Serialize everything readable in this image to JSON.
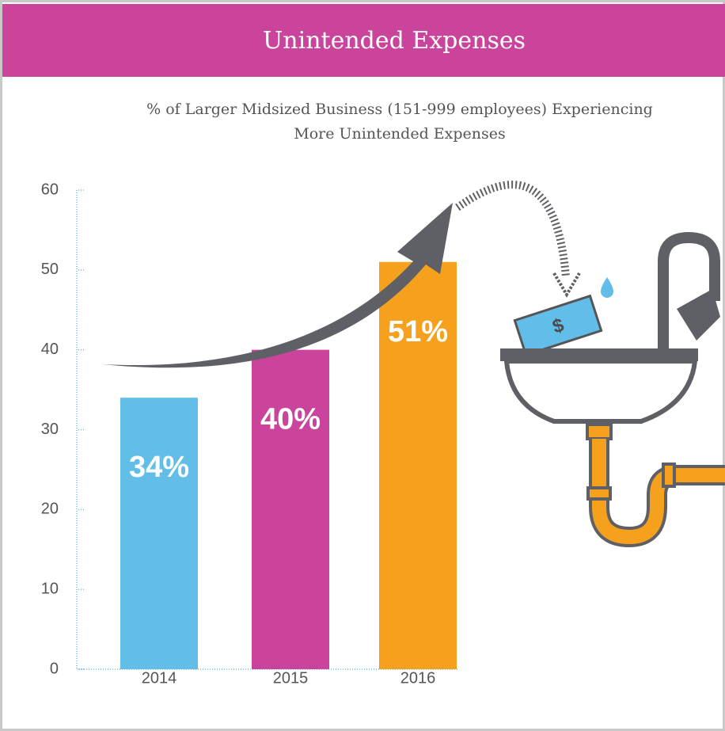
{
  "chart_data": {
    "type": "bar",
    "title": "Unintended Expenses",
    "subtitle": [
      "% of Larger Midsized Business (151-999 employees) Experiencing",
      "More Unintended Expenses"
    ],
    "categories": [
      "2014",
      "2015",
      "2016"
    ],
    "values": [
      34,
      40,
      51
    ],
    "value_labels": [
      "34%",
      "40%",
      "51%"
    ],
    "colors": [
      "#62bde9",
      "#c9449a",
      "#f5a11e"
    ],
    "ylim": [
      0,
      60
    ],
    "yticks": [
      0,
      10,
      20,
      30,
      40,
      50,
      60
    ]
  }
}
